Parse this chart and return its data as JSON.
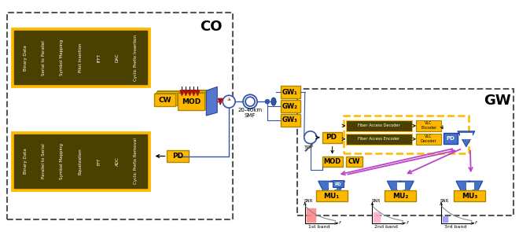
{
  "bg_color": "#ffffff",
  "yellow_fill": "#FFB800",
  "dark_fill": "#4A4000",
  "blue_fill": "#4472C4",
  "smf_label": "20-40km\nSMF",
  "co_label": "CO",
  "gw_label": "GW",
  "gw_nodes": [
    "GW₁",
    "GW₂",
    "GW₃"
  ],
  "mu_nodes": [
    "MU₁",
    "MU₂",
    "MU₃"
  ],
  "bands": [
    "1st band",
    "2nd band",
    "3rd band"
  ],
  "top_labels": [
    "Binary Data",
    "Serial to Parallel",
    "Symbol Mapping",
    "Pilot Insertion",
    "IFFT",
    "DAC",
    "Cyclic Prefix Insertion"
  ],
  "bot_labels": [
    "Binary Data",
    "Parallel to Serial",
    "Symbol Mapping",
    "Equalization",
    "FFT",
    "ADC",
    "Cyclic Prefix Removal"
  ],
  "bar_colors": [
    "#FF8888",
    "#FFB0CC",
    "#9999EE"
  ]
}
